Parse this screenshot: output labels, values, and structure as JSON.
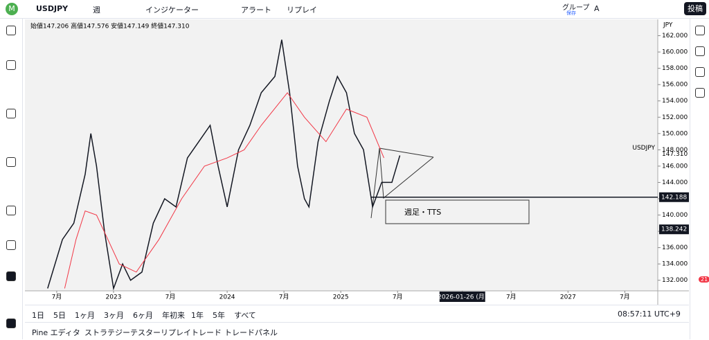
{
  "toolbar": {
    "symbol": "USDJPY",
    "interval": "週",
    "indicators": "インジケーター",
    "alert": "アラート",
    "replay": "リプレイ",
    "group": "グループ",
    "save": "保存",
    "layout": "A",
    "post": "投稿"
  },
  "ohlc": "始値147.206 高値147.576 安値147.149 終値147.310",
  "currency": "JPY",
  "chart_data": {
    "type": "line",
    "xlim": [
      2022.22,
      2027.79
    ],
    "ylim": [
      130.7,
      164
    ],
    "xticks": [
      {
        "value": 2022.5,
        "label": "7月"
      },
      {
        "value": 2023,
        "label": "2023"
      },
      {
        "value": 2023.5,
        "label": "7月"
      },
      {
        "value": 2024,
        "label": "2024"
      },
      {
        "value": 2024.5,
        "label": "7月"
      },
      {
        "value": 2025,
        "label": "2025"
      },
      {
        "value": 2025.5,
        "label": "7月"
      },
      {
        "value": 2026.07,
        "label": "2026-01-26 (月)"
      },
      {
        "value": 2026.5,
        "label": "7月"
      },
      {
        "value": 2027,
        "label": "2027"
      },
      {
        "value": 2027.5,
        "label": "7月"
      }
    ],
    "yticks": [
      {
        "value": 132,
        "label": "132.000"
      },
      {
        "value": 134,
        "label": "134.000"
      },
      {
        "value": 136,
        "label": "136.000"
      },
      {
        "value": 138,
        "label": "138.000"
      },
      {
        "value": 140,
        "label": "140.000"
      },
      {
        "value": 142,
        "label": "142.000"
      },
      {
        "value": 144,
        "label": "144.000"
      },
      {
        "value": 146,
        "label": "146.000"
      },
      {
        "value": 148,
        "label": "148.000"
      },
      {
        "value": 150,
        "label": "150.000"
      },
      {
        "value": 152,
        "label": "152.000"
      },
      {
        "value": 154,
        "label": "154.000"
      },
      {
        "value": 156,
        "label": "156.000"
      },
      {
        "value": 158,
        "label": "158.000"
      },
      {
        "value": 160,
        "label": "160.000"
      },
      {
        "value": 162,
        "label": "162.000"
      }
    ],
    "series": [
      {
        "name": "USDJPY",
        "color": "#131722",
        "x": [
          2022.42,
          2022.55,
          2022.65,
          2022.75,
          2022.8,
          2022.85,
          2022.92,
          2023.0,
          2023.08,
          2023.15,
          2023.25,
          2023.35,
          2023.45,
          2023.55,
          2023.65,
          2023.75,
          2023.85,
          2023.92,
          2024.0,
          2024.1,
          2024.2,
          2024.3,
          2024.42,
          2024.48,
          2024.55,
          2024.62,
          2024.68,
          2024.72,
          2024.8,
          2024.9,
          2024.97,
          2025.05,
          2025.12,
          2025.2,
          2025.28,
          2025.36,
          2025.45,
          2025.52
        ],
        "values": [
          131,
          137,
          139,
          145,
          150,
          146,
          138,
          131,
          134,
          132,
          133,
          139,
          142,
          141,
          147,
          149,
          151,
          146,
          141,
          148,
          151,
          155,
          157,
          161.5,
          155,
          146,
          142,
          141,
          149,
          154,
          157,
          155,
          150,
          148,
          141,
          144,
          144,
          147.31
        ]
      },
      {
        "color": "#f23645",
        "x": [
          2022.57,
          2022.67,
          2022.75,
          2022.85,
          2022.95,
          2023.05,
          2023.2,
          2023.4,
          2023.6,
          2023.8,
          2024.0,
          2024.15,
          2024.3,
          2024.53,
          2024.68,
          2024.87,
          2025.05,
          2025.23,
          2025.38
        ],
        "values": [
          131,
          137,
          140.5,
          140,
          137,
          134,
          133,
          137,
          142,
          146,
          147,
          148,
          151,
          155,
          152,
          149,
          153,
          152,
          147
        ]
      }
    ],
    "last_price": {
      "name": "USDJPY",
      "value": 147.31,
      "label": "147.310"
    },
    "hline": {
      "value": 142.188,
      "label": "142.188"
    },
    "crosshair": {
      "value": 138.242,
      "label": "138.242"
    },
    "annotation": "週足・TTS"
  },
  "ranges": [
    "1日",
    "5日",
    "1ヶ月",
    "3ヶ月",
    "6ヶ月",
    "年初来",
    "1年",
    "5年",
    "すべて"
  ],
  "clock": "08:57:11 UTC+9",
  "tabs": [
    "Pine エディタ",
    "ストラテジーテスター",
    "リプレイトレード",
    "トレードパネル"
  ],
  "badge": "21"
}
